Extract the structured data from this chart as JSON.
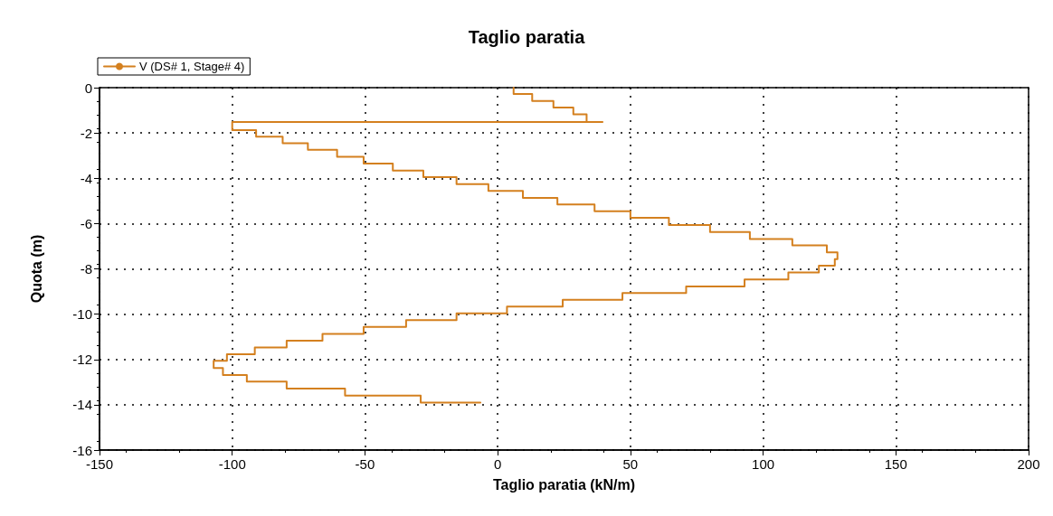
{
  "chart_data": {
    "type": "line",
    "title": "Taglio paratia",
    "xlabel": "Taglio paratia (kN/m)",
    "ylabel": "Quota (m)",
    "xlim": [
      -150,
      200
    ],
    "xticks": [
      -150,
      -100,
      -50,
      0,
      50,
      100,
      150,
      200
    ],
    "ylim": [
      -16,
      0
    ],
    "yticks": [
      -16,
      -14,
      -12,
      -10,
      -8,
      -6,
      -4,
      -2,
      0
    ],
    "grid": true,
    "line_style": "solid",
    "legend": "top left",
    "series": [
      {
        "name": "V (DS# 1, Stage# 4)",
        "color": "#d4801f",
        "x": [
          6,
          6,
          13,
          13,
          21,
          21,
          28.5,
          28.5,
          33.5,
          33.5,
          39.5,
          -100,
          -100,
          -91,
          -91,
          -81,
          -81,
          -71.5,
          -71.5,
          -60.5,
          -60.5,
          -50.5,
          -50.5,
          -39.5,
          -39.5,
          -28,
          -28,
          -15.5,
          -15.5,
          -3.5,
          -3.5,
          9.5,
          9.5,
          22.5,
          22.5,
          36.5,
          36.5,
          50,
          50,
          64.5,
          64.5,
          80,
          80,
          95,
          95,
          111,
          111,
          124,
          124,
          128,
          128,
          127,
          127,
          121,
          121,
          109.5,
          109.5,
          93,
          93,
          71,
          71,
          47,
          47,
          24.5,
          24.5,
          3.5,
          3.5,
          -15.5,
          -15.5,
          -34.5,
          -34.5,
          -50.5,
          -50.5,
          -66,
          -66,
          -79.5,
          -79.5,
          -91.5,
          -91.5,
          -102,
          -102,
          -107,
          -107,
          -103.5,
          -103.5,
          -94.5,
          -94.5,
          -79.5,
          -79.5,
          -57.5,
          -57.5,
          -29,
          -29,
          -6.5
        ],
        "values": [
          0,
          -0.28,
          -0.28,
          -0.59,
          -0.59,
          -0.88,
          -0.88,
          -1.18,
          -1.18,
          -1.52,
          -1.52,
          -1.52,
          -1.88,
          -1.88,
          -2.16,
          -2.16,
          -2.45,
          -2.45,
          -2.74,
          -2.74,
          -3.05,
          -3.05,
          -3.35,
          -3.35,
          -3.66,
          -3.66,
          -3.95,
          -3.95,
          -4.26,
          -4.26,
          -4.56,
          -4.56,
          -4.87,
          -4.87,
          -5.16,
          -5.16,
          -5.46,
          -5.46,
          -5.75,
          -5.75,
          -6.06,
          -6.06,
          -6.37,
          -6.37,
          -6.68,
          -6.68,
          -6.96,
          -6.96,
          -7.27,
          -7.27,
          -7.57,
          -7.57,
          -7.86,
          -7.86,
          -8.16,
          -8.16,
          -8.47,
          -8.47,
          -8.78,
          -8.78,
          -9.07,
          -9.07,
          -9.37,
          -9.37,
          -9.67,
          -9.67,
          -9.97,
          -9.97,
          -10.26,
          -10.26,
          -10.56,
          -10.56,
          -10.87,
          -10.87,
          -11.17,
          -11.17,
          -11.47,
          -11.47,
          -11.77,
          -11.77,
          -12.06,
          -12.06,
          -12.38,
          -12.38,
          -12.69,
          -12.69,
          -12.98,
          -12.98,
          -13.29,
          -13.29,
          -13.6,
          -13.6,
          -13.91,
          -13.91
        ]
      }
    ]
  }
}
